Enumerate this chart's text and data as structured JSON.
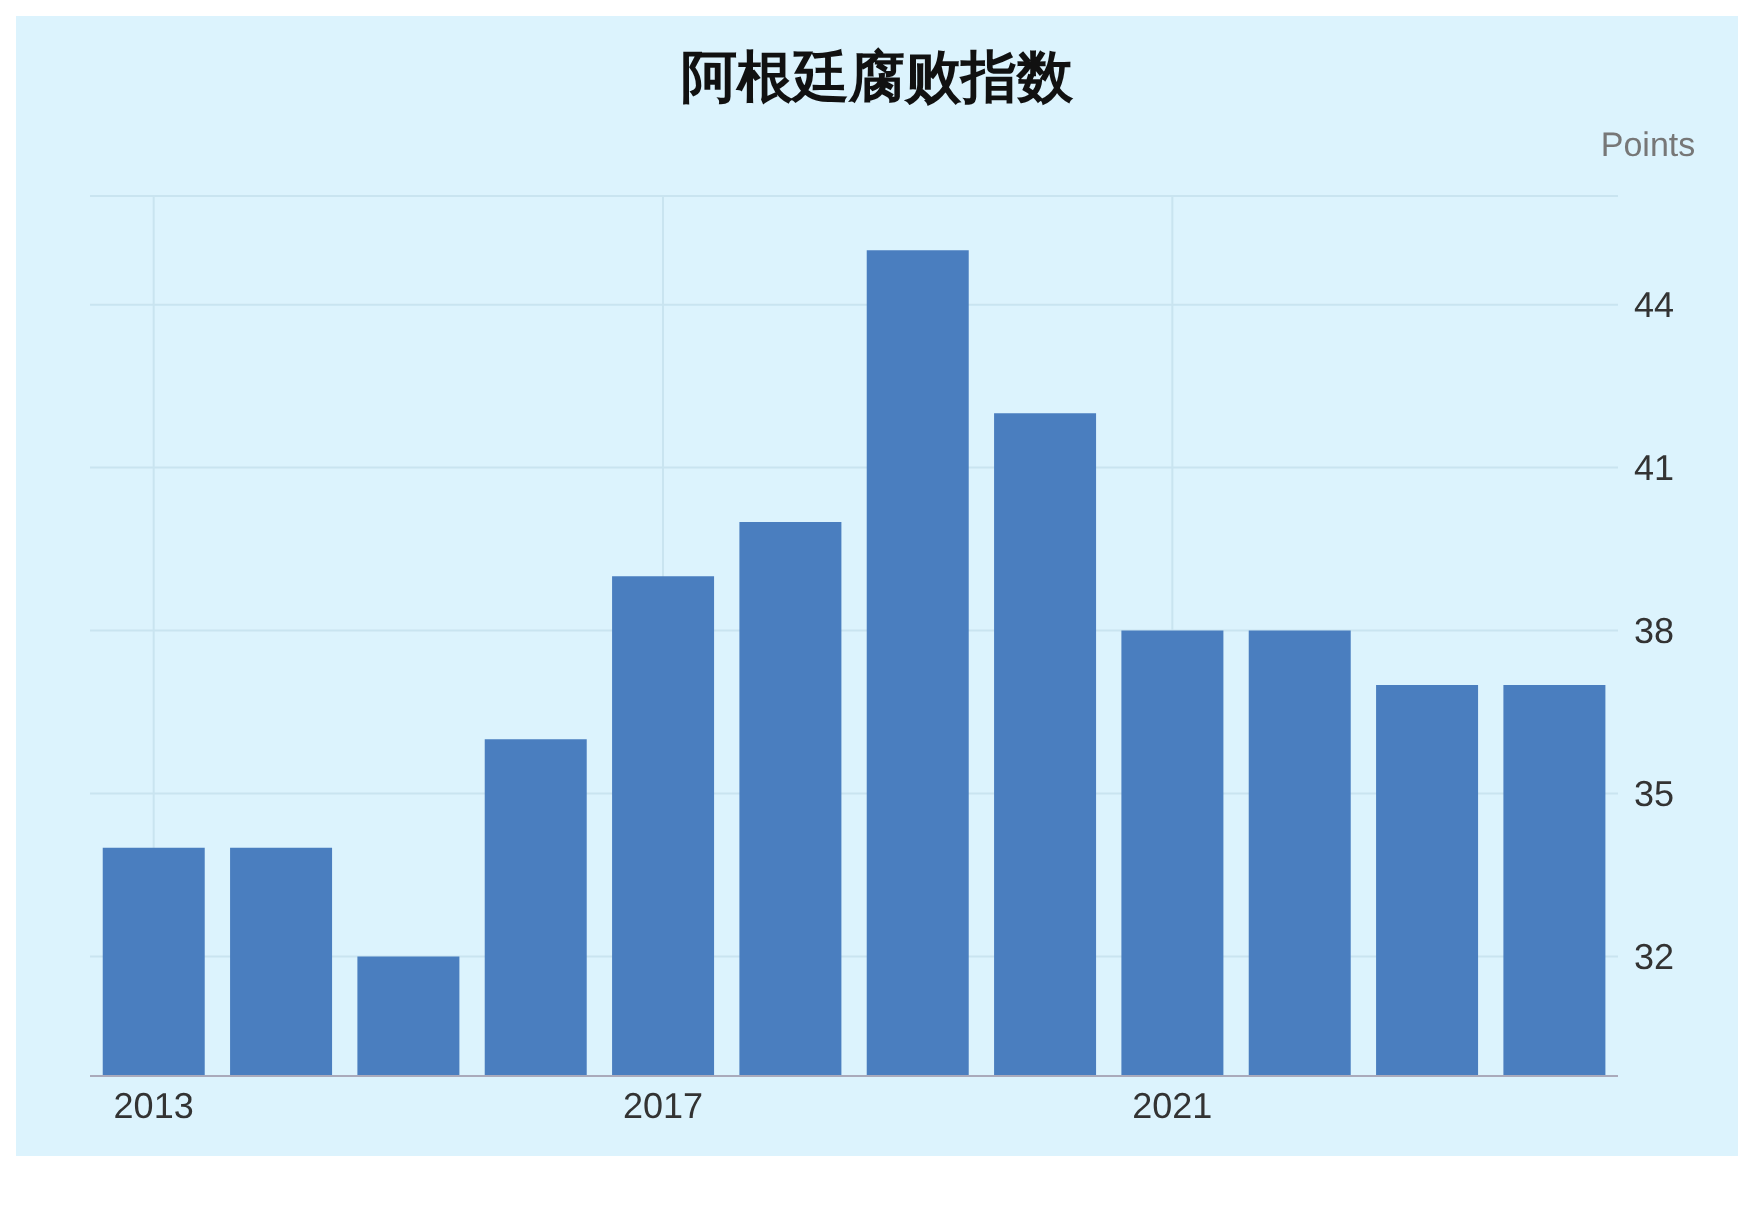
{
  "chart_data": {
    "type": "bar",
    "title": "阿根廷腐败指数",
    "ylabel": "Points",
    "categories": [
      "2013",
      null,
      null,
      null,
      "2017",
      null,
      null,
      null,
      "2021",
      null,
      null,
      null
    ],
    "values": [
      34,
      34,
      32,
      36,
      39,
      40,
      45,
      42,
      38,
      38,
      37,
      37
    ],
    "color": "#4a7ebf",
    "ylim": [
      29.8,
      46
    ],
    "yticks": [
      32,
      35,
      38,
      41,
      44
    ],
    "grid": true,
    "legend": false
  }
}
